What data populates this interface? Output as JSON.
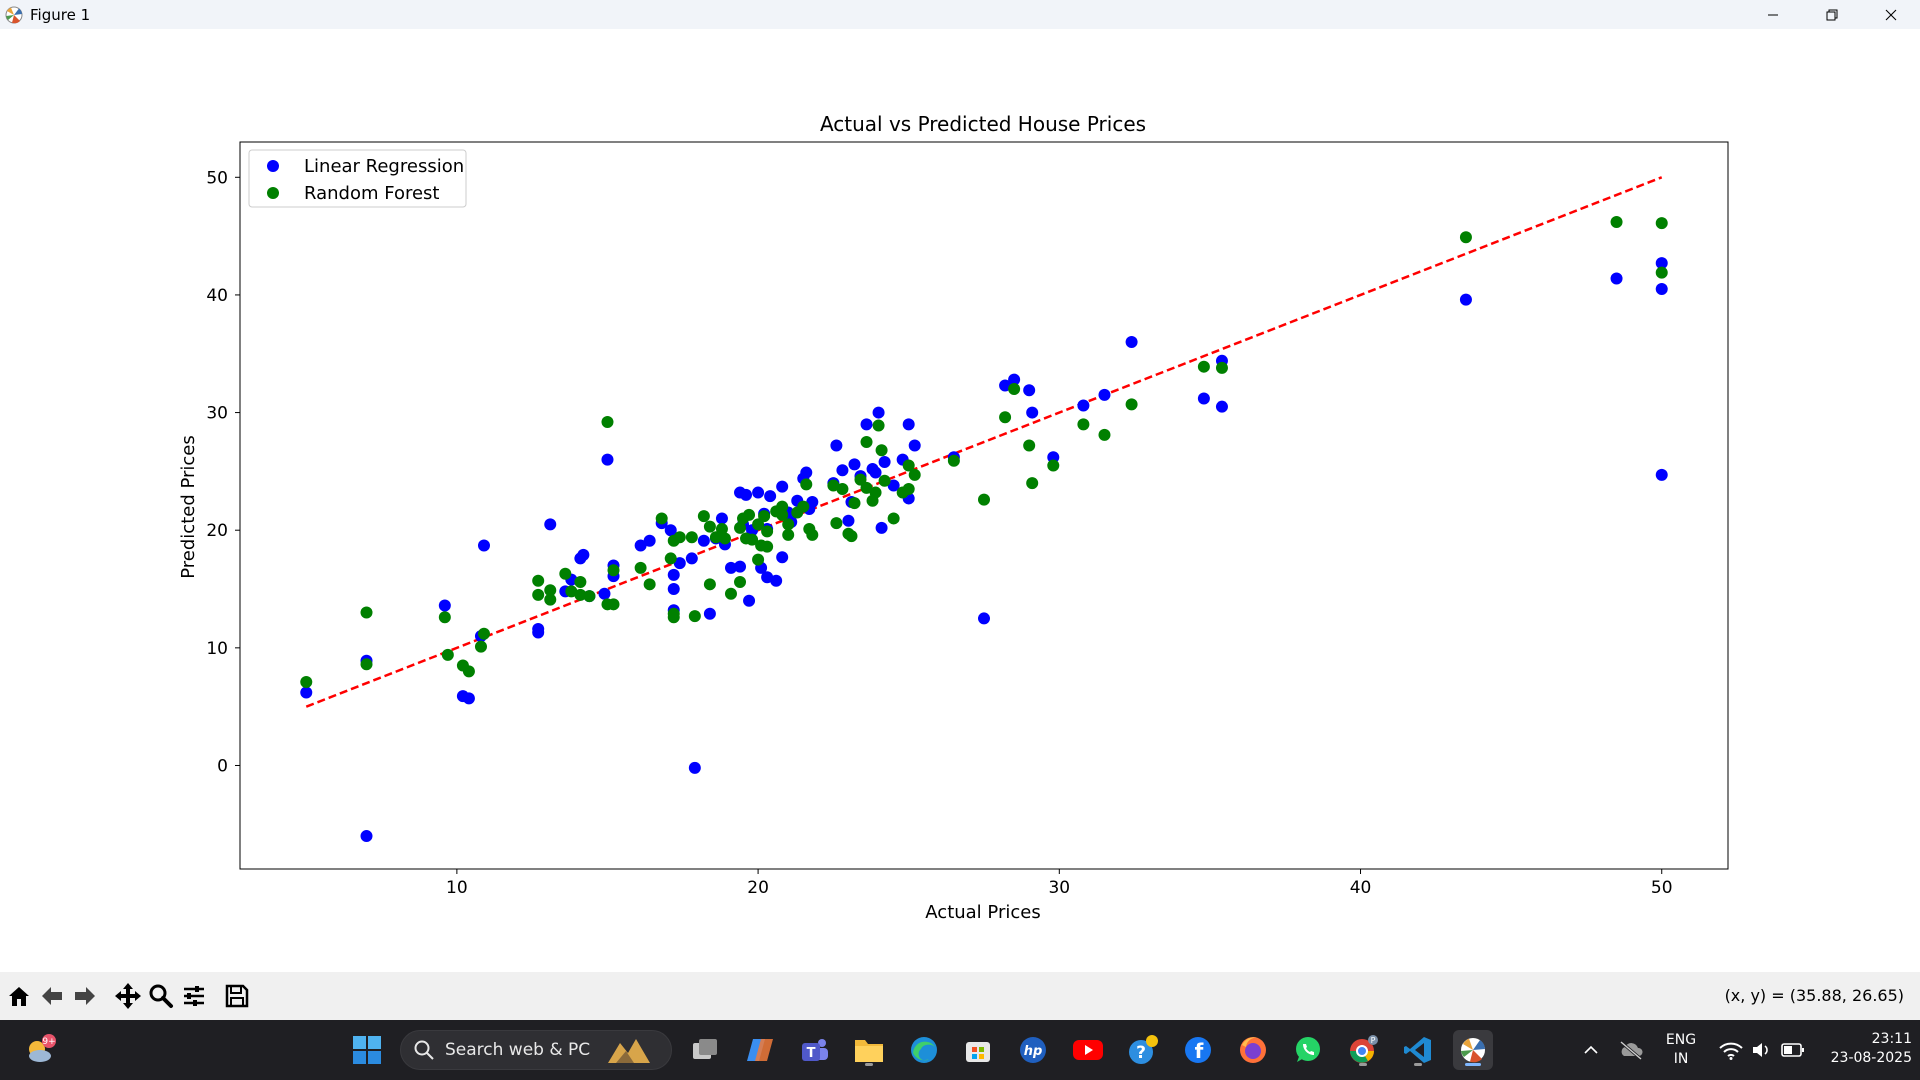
{
  "window": {
    "title": "Figure 1"
  },
  "toolbar": {
    "coords": "(x, y) = (35.88, 26.65)",
    "buttons": [
      "home-icon",
      "back-arrow-icon",
      "forward-arrow-icon",
      "pan-icon",
      "zoom-icon",
      "configure-subplots-icon",
      "save-icon"
    ]
  },
  "taskbar": {
    "search_label": "Search web & PC",
    "weather_badge": "9+",
    "lang_line1": "ENG",
    "lang_line2": "IN",
    "time": "23:11",
    "date": "23-08-2025"
  },
  "chart_data": {
    "type": "scatter",
    "title": "Actual vs Predicted House Prices",
    "xlabel": "Actual Prices",
    "ylabel": "Predicted Prices",
    "xlim": [
      2.8,
      52.2
    ],
    "ylim": [
      -8.8,
      53.0
    ],
    "xticks": [
      10,
      20,
      30,
      40,
      50
    ],
    "yticks": [
      0,
      10,
      20,
      30,
      40,
      50
    ],
    "legend_position": "upper-left",
    "colors": {
      "lr": "#0000ff",
      "rf": "#008000",
      "ideal": "#ff0000"
    },
    "ideal_line": {
      "x": [
        5,
        50
      ],
      "y": [
        5,
        50
      ],
      "style": "dashed"
    },
    "series": [
      {
        "name": "Linear Regression",
        "color": "#0000ff",
        "points": [
          [
            5,
            6.2
          ],
          [
            7,
            -6
          ],
          [
            7,
            8.9
          ],
          [
            9.6,
            13.6
          ],
          [
            10.2,
            5.9
          ],
          [
            10.4,
            5.7
          ],
          [
            10.8,
            11
          ],
          [
            10.9,
            18.7
          ],
          [
            12.7,
            11.6
          ],
          [
            12.7,
            11.3
          ],
          [
            13.1,
            20.5
          ],
          [
            13.6,
            14.8
          ],
          [
            13.8,
            15.8
          ],
          [
            14.1,
            17.6
          ],
          [
            14.2,
            17.9
          ],
          [
            14.4,
            14.4
          ],
          [
            14.9,
            14.6
          ],
          [
            15,
            26
          ],
          [
            15.2,
            17
          ],
          [
            15.2,
            16.1
          ],
          [
            16.1,
            18.7
          ],
          [
            16.4,
            19.1
          ],
          [
            16.8,
            20.6
          ],
          [
            17.1,
            20
          ],
          [
            17.2,
            16.2
          ],
          [
            17.2,
            15
          ],
          [
            17.2,
            13.2
          ],
          [
            17.4,
            17.2
          ],
          [
            17.8,
            17.6
          ],
          [
            17.9,
            -0.2
          ],
          [
            18.2,
            19.1
          ],
          [
            18.4,
            12.9
          ],
          [
            18.6,
            19.3
          ],
          [
            18.8,
            21
          ],
          [
            18.9,
            18.8
          ],
          [
            19.1,
            16.8
          ],
          [
            19.4,
            23.2
          ],
          [
            19.4,
            16.9
          ],
          [
            19.5,
            20.5
          ],
          [
            19.6,
            23
          ],
          [
            19.7,
            14
          ],
          [
            19.8,
            20
          ],
          [
            20,
            23.2
          ],
          [
            20.1,
            16.8
          ],
          [
            20.2,
            21.4
          ],
          [
            20.3,
            16
          ],
          [
            20.3,
            20.1
          ],
          [
            20.4,
            22.9
          ],
          [
            20.6,
            15.7
          ],
          [
            20.8,
            23.7
          ],
          [
            20.8,
            17.7
          ],
          [
            21,
            21.5
          ],
          [
            21.1,
            20.7
          ],
          [
            21.3,
            22.5
          ],
          [
            21.5,
            24.4
          ],
          [
            21.6,
            24.9
          ],
          [
            21.7,
            21.8
          ],
          [
            21.8,
            22.4
          ],
          [
            22.5,
            24
          ],
          [
            22.6,
            27.2
          ],
          [
            22.8,
            25.1
          ],
          [
            23,
            20.8
          ],
          [
            23.1,
            22.4
          ],
          [
            23.2,
            25.6
          ],
          [
            23.4,
            24.6
          ],
          [
            23.6,
            29
          ],
          [
            23.8,
            25.2
          ],
          [
            23.9,
            24.9
          ],
          [
            24,
            30
          ],
          [
            24.1,
            20.2
          ],
          [
            24.2,
            25.8
          ],
          [
            24.5,
            23.8
          ],
          [
            24.8,
            26
          ],
          [
            25,
            29
          ],
          [
            25,
            22.7
          ],
          [
            25.2,
            27.2
          ],
          [
            26.5,
            26.2
          ],
          [
            27.5,
            12.5
          ],
          [
            28.2,
            32.3
          ],
          [
            28.5,
            32.8
          ],
          [
            29,
            31.9
          ],
          [
            29.1,
            30
          ],
          [
            29.8,
            26.2
          ],
          [
            30.8,
            30.6
          ],
          [
            31.5,
            31.5
          ],
          [
            32.4,
            36
          ],
          [
            34.8,
            31.2
          ],
          [
            35.4,
            34.4
          ],
          [
            35.4,
            30.5
          ],
          [
            43.5,
            39.6
          ],
          [
            48.5,
            41.4
          ],
          [
            50,
            42.7
          ],
          [
            50,
            40.5
          ],
          [
            50,
            24.7
          ]
        ]
      },
      {
        "name": "Random Forest",
        "color": "#008000",
        "points": [
          [
            5,
            7.1
          ],
          [
            7,
            13
          ],
          [
            7,
            8.6
          ],
          [
            9.6,
            12.6
          ],
          [
            9.7,
            9.4
          ],
          [
            10.2,
            8.5
          ],
          [
            10.4,
            8
          ],
          [
            10.8,
            10.1
          ],
          [
            10.9,
            11.2
          ],
          [
            12.7,
            15.7
          ],
          [
            12.7,
            14.5
          ],
          [
            13.1,
            14.1
          ],
          [
            13.1,
            14.9
          ],
          [
            13.6,
            16.3
          ],
          [
            13.8,
            14.8
          ],
          [
            14.1,
            15.6
          ],
          [
            14.1,
            14.5
          ],
          [
            14.4,
            14.4
          ],
          [
            15,
            29.2
          ],
          [
            15,
            13.7
          ],
          [
            15.2,
            16.6
          ],
          [
            15.2,
            13.7
          ],
          [
            16.1,
            16.8
          ],
          [
            16.4,
            15.4
          ],
          [
            16.8,
            21
          ],
          [
            17.1,
            17.6
          ],
          [
            17.2,
            19.1
          ],
          [
            17.2,
            12.9
          ],
          [
            17.2,
            12.6
          ],
          [
            17.4,
            19.4
          ],
          [
            17.8,
            19.4
          ],
          [
            17.9,
            12.7
          ],
          [
            18.2,
            21.2
          ],
          [
            18.4,
            15.4
          ],
          [
            18.4,
            20.3
          ],
          [
            18.6,
            19.4
          ],
          [
            18.8,
            20.1
          ],
          [
            18.9,
            19.3
          ],
          [
            19.1,
            14.6
          ],
          [
            19.4,
            20.2
          ],
          [
            19.4,
            15.6
          ],
          [
            19.5,
            21
          ],
          [
            19.6,
            19.3
          ],
          [
            19.7,
            21.3
          ],
          [
            19.8,
            19.2
          ],
          [
            20,
            17.5
          ],
          [
            20,
            20.5
          ],
          [
            20.1,
            18.7
          ],
          [
            20.2,
            21.2
          ],
          [
            20.3,
            18.6
          ],
          [
            20.3,
            19.9
          ],
          [
            20.6,
            21.6
          ],
          [
            20.8,
            21.3
          ],
          [
            20.8,
            22
          ],
          [
            21,
            19.6
          ],
          [
            21,
            20.5
          ],
          [
            21.3,
            21.5
          ],
          [
            21.5,
            22
          ],
          [
            21.6,
            23.9
          ],
          [
            21.7,
            20.1
          ],
          [
            21.8,
            19.6
          ],
          [
            22.5,
            23.8
          ],
          [
            22.6,
            20.6
          ],
          [
            22.8,
            23.5
          ],
          [
            23,
            19.7
          ],
          [
            23.1,
            19.5
          ],
          [
            23.2,
            22.3
          ],
          [
            23.4,
            24.3
          ],
          [
            23.6,
            23.6
          ],
          [
            23.6,
            27.5
          ],
          [
            23.8,
            22.5
          ],
          [
            23.9,
            23.2
          ],
          [
            24,
            28.9
          ],
          [
            24.1,
            26.8
          ],
          [
            24.2,
            24.2
          ],
          [
            24.5,
            21
          ],
          [
            24.8,
            23.2
          ],
          [
            25,
            25.5
          ],
          [
            25,
            23.5
          ],
          [
            25.2,
            24.7
          ],
          [
            26.5,
            25.9
          ],
          [
            27.5,
            22.6
          ],
          [
            28.2,
            29.6
          ],
          [
            28.5,
            32
          ],
          [
            29,
            27.2
          ],
          [
            29.1,
            24
          ],
          [
            29.8,
            25.5
          ],
          [
            30.8,
            29
          ],
          [
            31.5,
            28.1
          ],
          [
            32.4,
            30.7
          ],
          [
            34.8,
            33.9
          ],
          [
            35.4,
            33.8
          ],
          [
            43.5,
            44.9
          ],
          [
            48.5,
            46.2
          ],
          [
            50,
            46.1
          ],
          [
            50,
            41.9
          ]
        ]
      }
    ]
  }
}
